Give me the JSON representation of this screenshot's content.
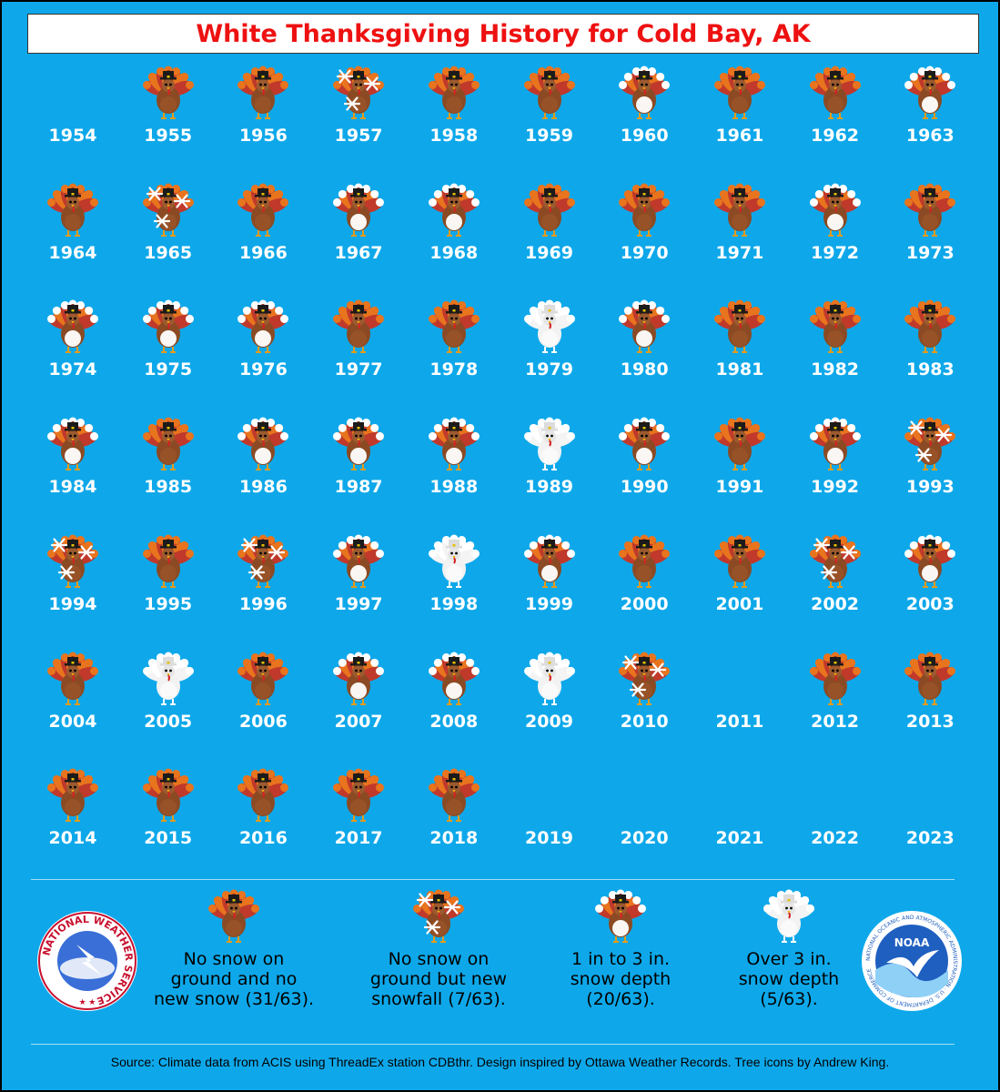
{
  "title": "White Thanksgiving History for Cold Bay, AK",
  "colors": {
    "background": "#0ea8ea",
    "title_text": "#ee1111",
    "year_text": "#ffffff"
  },
  "years": [
    {
      "year": "1954",
      "category": "none"
    },
    {
      "year": "1955",
      "category": "no_snow"
    },
    {
      "year": "1956",
      "category": "no_snow"
    },
    {
      "year": "1957",
      "category": "new_snow"
    },
    {
      "year": "1958",
      "category": "no_snow"
    },
    {
      "year": "1959",
      "category": "no_snow"
    },
    {
      "year": "1960",
      "category": "depth_1_3"
    },
    {
      "year": "1961",
      "category": "no_snow"
    },
    {
      "year": "1962",
      "category": "no_snow"
    },
    {
      "year": "1963",
      "category": "depth_1_3"
    },
    {
      "year": "1964",
      "category": "no_snow"
    },
    {
      "year": "1965",
      "category": "new_snow"
    },
    {
      "year": "1966",
      "category": "no_snow"
    },
    {
      "year": "1967",
      "category": "depth_1_3"
    },
    {
      "year": "1968",
      "category": "depth_1_3"
    },
    {
      "year": "1969",
      "category": "no_snow"
    },
    {
      "year": "1970",
      "category": "no_snow"
    },
    {
      "year": "1971",
      "category": "no_snow"
    },
    {
      "year": "1972",
      "category": "depth_1_3"
    },
    {
      "year": "1973",
      "category": "no_snow"
    },
    {
      "year": "1974",
      "category": "depth_1_3"
    },
    {
      "year": "1975",
      "category": "depth_1_3"
    },
    {
      "year": "1976",
      "category": "depth_1_3"
    },
    {
      "year": "1977",
      "category": "no_snow"
    },
    {
      "year": "1978",
      "category": "no_snow"
    },
    {
      "year": "1979",
      "category": "depth_over_3"
    },
    {
      "year": "1980",
      "category": "depth_1_3"
    },
    {
      "year": "1981",
      "category": "no_snow"
    },
    {
      "year": "1982",
      "category": "no_snow"
    },
    {
      "year": "1983",
      "category": "no_snow"
    },
    {
      "year": "1984",
      "category": "depth_1_3"
    },
    {
      "year": "1985",
      "category": "no_snow"
    },
    {
      "year": "1986",
      "category": "depth_1_3"
    },
    {
      "year": "1987",
      "category": "depth_1_3"
    },
    {
      "year": "1988",
      "category": "depth_1_3"
    },
    {
      "year": "1989",
      "category": "depth_over_3"
    },
    {
      "year": "1990",
      "category": "depth_1_3"
    },
    {
      "year": "1991",
      "category": "no_snow"
    },
    {
      "year": "1992",
      "category": "depth_1_3"
    },
    {
      "year": "1993",
      "category": "new_snow"
    },
    {
      "year": "1994",
      "category": "new_snow"
    },
    {
      "year": "1995",
      "category": "no_snow"
    },
    {
      "year": "1996",
      "category": "new_snow"
    },
    {
      "year": "1997",
      "category": "depth_1_3"
    },
    {
      "year": "1998",
      "category": "depth_over_3"
    },
    {
      "year": "1999",
      "category": "depth_1_3"
    },
    {
      "year": "2000",
      "category": "no_snow"
    },
    {
      "year": "2001",
      "category": "no_snow"
    },
    {
      "year": "2002",
      "category": "new_snow"
    },
    {
      "year": "2003",
      "category": "depth_1_3"
    },
    {
      "year": "2004",
      "category": "no_snow"
    },
    {
      "year": "2005",
      "category": "depth_over_3"
    },
    {
      "year": "2006",
      "category": "no_snow"
    },
    {
      "year": "2007",
      "category": "depth_1_3"
    },
    {
      "year": "2008",
      "category": "depth_1_3"
    },
    {
      "year": "2009",
      "category": "depth_over_3"
    },
    {
      "year": "2010",
      "category": "new_snow"
    },
    {
      "year": "2011",
      "category": "none"
    },
    {
      "year": "2012",
      "category": "no_snow"
    },
    {
      "year": "2013",
      "category": "no_snow"
    },
    {
      "year": "2014",
      "category": "no_snow"
    },
    {
      "year": "2015",
      "category": "no_snow"
    },
    {
      "year": "2016",
      "category": "no_snow"
    },
    {
      "year": "2017",
      "category": "no_snow"
    },
    {
      "year": "2018",
      "category": "no_snow"
    },
    {
      "year": "2019",
      "category": "none"
    },
    {
      "year": "2020",
      "category": "none"
    },
    {
      "year": "2021",
      "category": "none"
    },
    {
      "year": "2022",
      "category": "none"
    },
    {
      "year": "2023",
      "category": "none"
    }
  ],
  "legend": [
    {
      "category": "no_snow",
      "icon": "turkey-icon",
      "text": [
        "No snow on",
        "ground and no",
        "new snow (31/63)."
      ]
    },
    {
      "category": "new_snow",
      "icon": "turkey-snowfall-icon",
      "text": [
        "No snow on",
        "ground but new",
        "snowfall (7/63)."
      ]
    },
    {
      "category": "depth_1_3",
      "icon": "turkey-partly-white-icon",
      "text": [
        "1 in to 3 in.",
        "snow depth",
        "(20/63)."
      ]
    },
    {
      "category": "depth_over_3",
      "icon": "turkey-white-icon",
      "text": [
        "Over 3 in.",
        "snow depth",
        "(5/63)."
      ]
    }
  ],
  "logos": {
    "nws_text": "NATIONAL WEATHER SERVICE",
    "noaa_text": "NOAA",
    "noaa_ring_text": "NATIONAL OCEANIC AND ATMOSPHERIC ADMINISTRATION · U.S. DEPARTMENT OF COMMERCE"
  },
  "source": "Source: Climate data from ACIS using ThreadEx station CDBthr. Design inspired by Ottawa Weather Records. Tree icons by Andrew King."
}
